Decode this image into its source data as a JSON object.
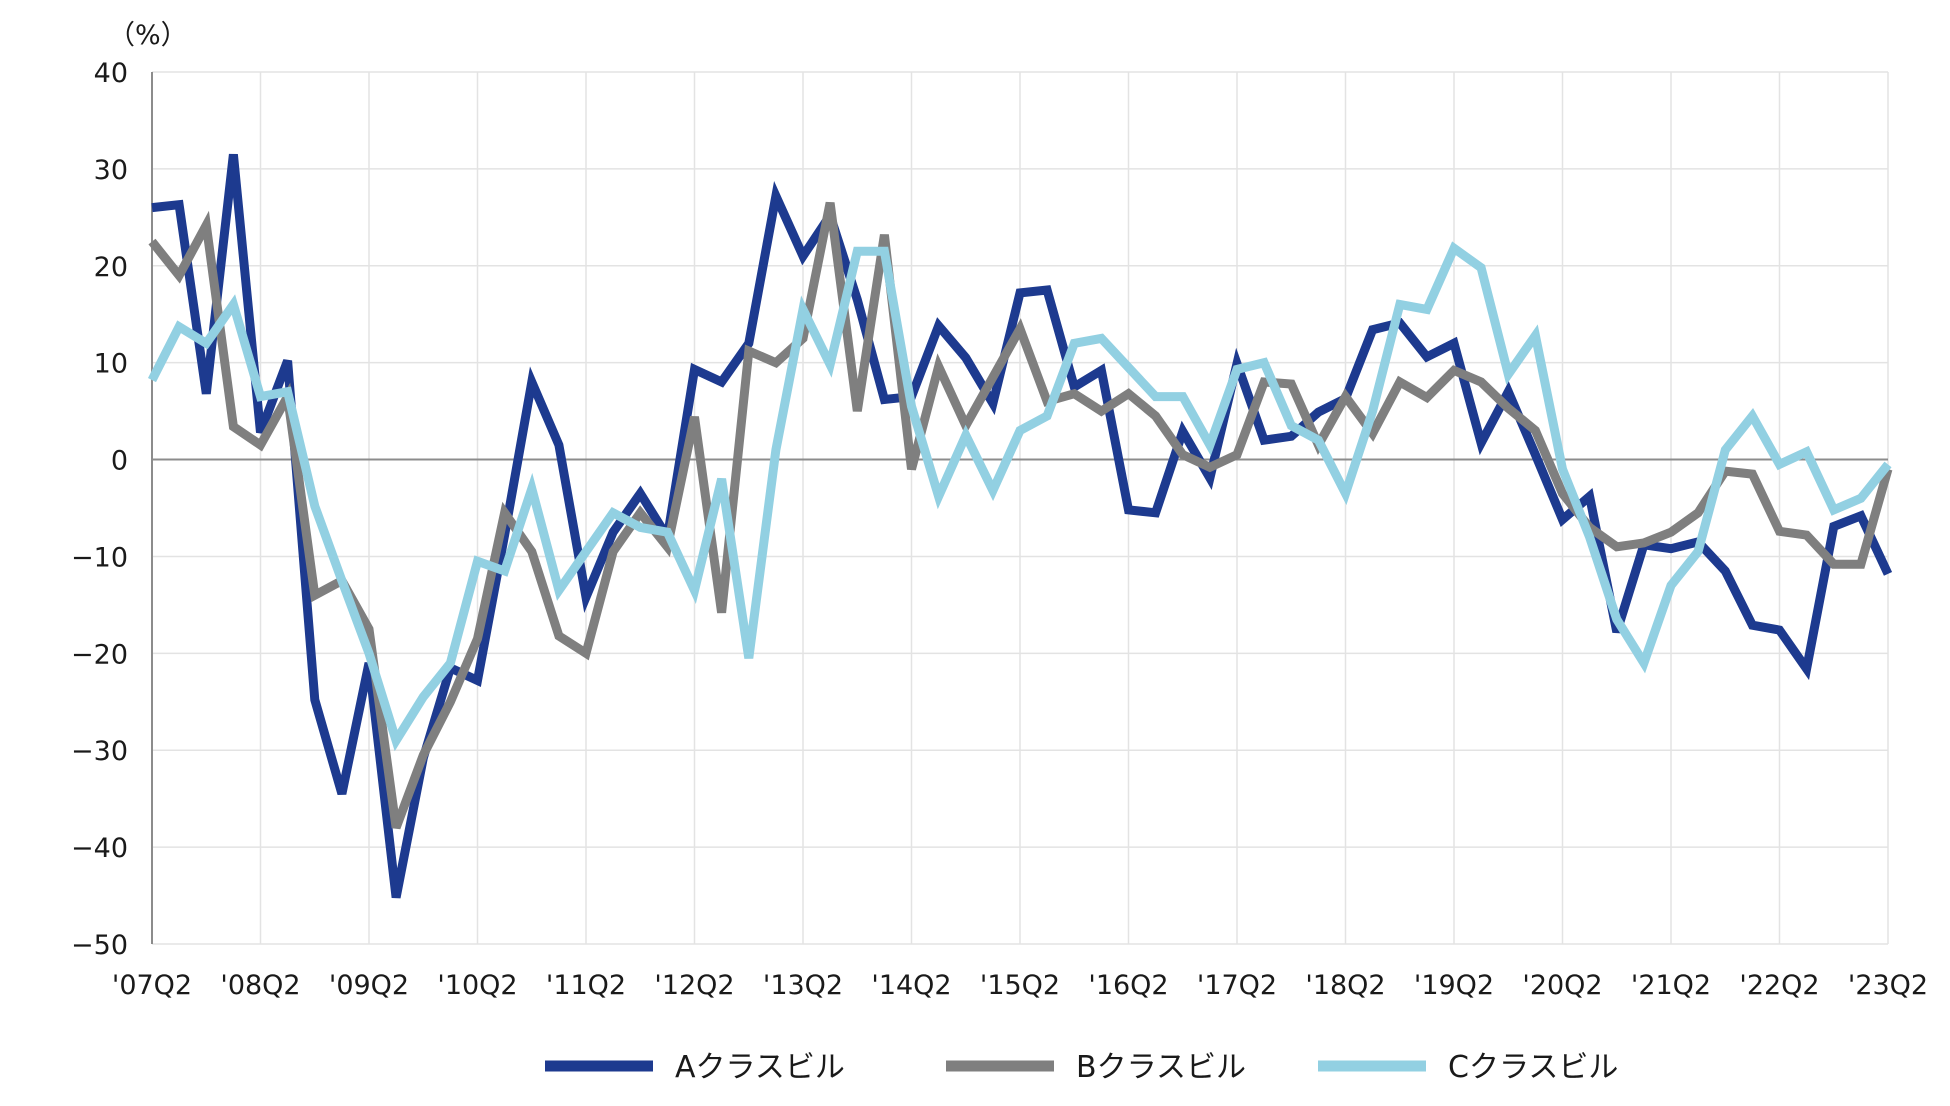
{
  "chart_data": {
    "type": "line",
    "title": "",
    "xlabel": "",
    "ylabel": "（%）",
    "ylim": [
      -50,
      40
    ],
    "yticks": [
      40,
      30,
      20,
      10,
      0,
      -10,
      -20,
      -30,
      -40,
      -50
    ],
    "ytick_labels": [
      "40",
      "30",
      "20",
      "10",
      "0",
      "−10",
      "−20",
      "−30",
      "−40",
      "−50"
    ],
    "xtick_labels": [
      "'07Q2",
      "'08Q2",
      "'09Q2",
      "'10Q2",
      "'11Q2",
      "'12Q2",
      "'13Q2",
      "'14Q2",
      "'15Q2",
      "'16Q2",
      "'17Q2",
      "'18Q2",
      "'19Q2",
      "'20Q2",
      "'21Q2",
      "'22Q2",
      "'23Q2"
    ],
    "grid": true,
    "legend_position": "bottom",
    "series": [
      {
        "name": "Aクラスビル",
        "color": "#1d3a8f",
        "values": [
          26,
          26.3,
          6.8,
          31.5,
          2.8,
          10.2,
          -24.8,
          -34.5,
          -21,
          -45.2,
          -30.8,
          -21.5,
          -22.8,
          -7.8,
          8,
          1.5,
          -14.2,
          -7.5,
          -3.5,
          -8,
          9.3,
          8,
          12,
          27.2,
          21,
          25.2,
          16.5,
          6.2,
          6.5,
          13.8,
          10.5,
          5.8,
          17.2,
          17.5,
          7.5,
          9.2,
          -5.2,
          -5.5,
          2.9,
          -1.9,
          9.9,
          2,
          2.4,
          4.9,
          6.3,
          13.4,
          14.1,
          10.6,
          12,
          1.7,
          7,
          0.5,
          -6.2,
          -3.8,
          -17.8,
          -8.8,
          -9.2,
          -8.5,
          -11.5,
          -17.1,
          -17.6,
          -21.6,
          -6.9,
          -5.8,
          -11.8
        ]
      },
      {
        "name": "Bクラスビル",
        "color": "#7f7f7f",
        "values": [
          22.5,
          19,
          24.2,
          3.4,
          1.5,
          6.5,
          -14,
          -12.5,
          -17.5,
          -38,
          -30.5,
          -25,
          -18.5,
          -5.5,
          -9.5,
          -18.2,
          -20,
          -9.5,
          -5.5,
          -9,
          4.4,
          -15.8,
          11.2,
          10,
          12.5,
          26.5,
          5,
          23.2,
          -1,
          9.6,
          3.5,
          8.5,
          13.5,
          6,
          6.8,
          5,
          6.8,
          4.5,
          0.5,
          -0.8,
          0.5,
          8,
          7.8,
          1.5,
          6.5,
          2.7,
          8,
          6.4,
          9.2,
          8,
          5.3,
          3,
          -3.5,
          -7,
          -9,
          -8.6,
          -7.5,
          -5.5,
          -1.2,
          -1.5,
          -7.4,
          -7.8,
          -10.8,
          -10.8,
          -1
        ]
      },
      {
        "name": "Cクラスビル",
        "color": "#92d0e2",
        "values": [
          8.2,
          13.7,
          12,
          16,
          6.5,
          7,
          -4.8,
          -12.5,
          -20,
          -29,
          -24.5,
          -21,
          -10.5,
          -11.5,
          -3,
          -13.5,
          -9.5,
          -5.5,
          -7,
          -7.5,
          -13.5,
          -2,
          -20.5,
          1,
          15.5,
          9.8,
          21.5,
          21.5,
          5.5,
          -3.8,
          2.5,
          -3.2,
          3,
          4.5,
          12,
          12.5,
          9.5,
          6.5,
          6.5,
          1.5,
          9.3,
          10,
          3.5,
          2,
          -3.5,
          5,
          16,
          15.5,
          21.8,
          19.8,
          8.8,
          12.8,
          -1,
          -8,
          -16.5,
          -21,
          -13,
          -9.5,
          1,
          4.5,
          -0.5,
          0.8,
          -5.2,
          -4,
          -0.5
        ]
      }
    ]
  }
}
